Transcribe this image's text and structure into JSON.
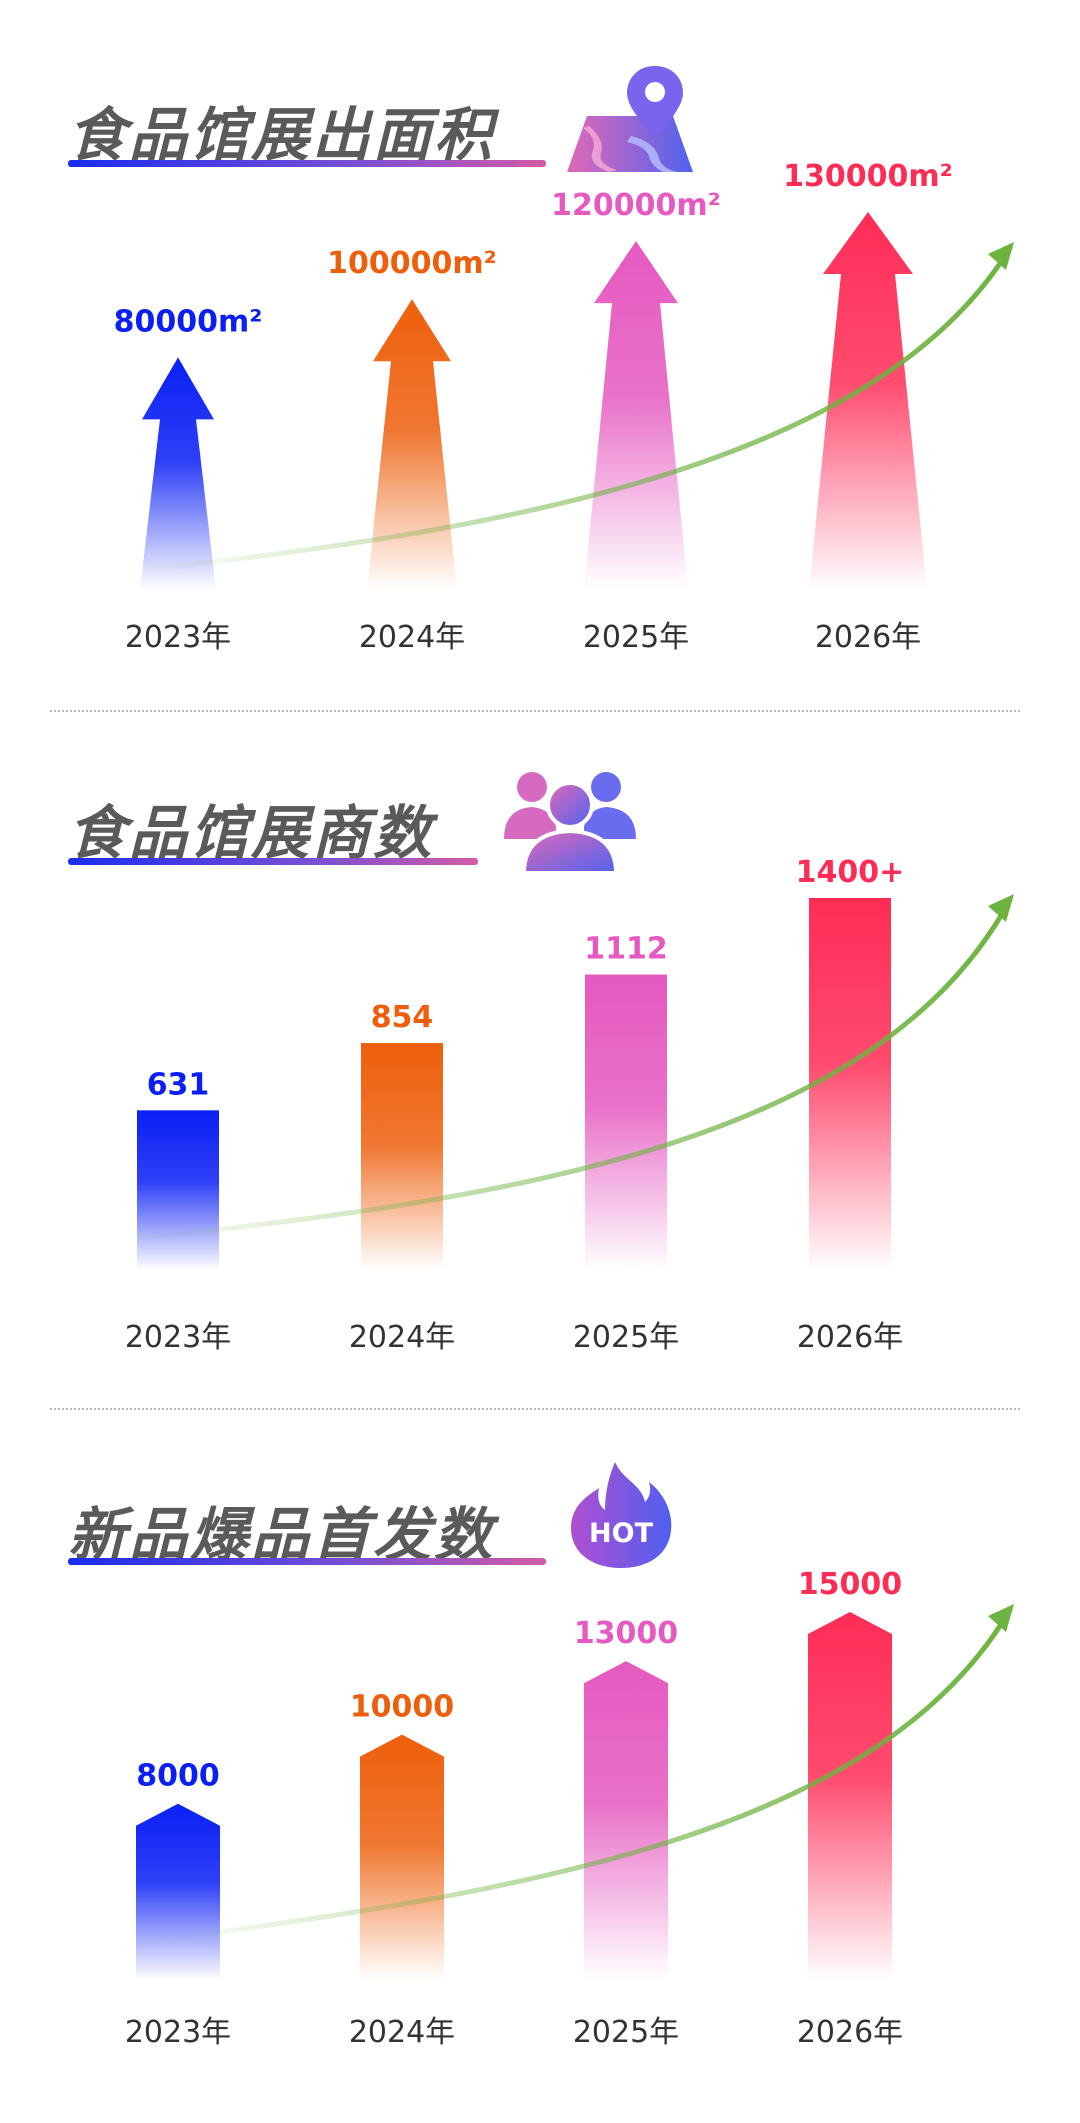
{
  "colors": {
    "blue": "#0a1ff5",
    "orange": "#ee5f0c",
    "pink": "#e559c0",
    "red": "#ff2c56",
    "green": "#6db33f",
    "title": "#5a5a5a",
    "axis_text": "#333333"
  },
  "sections": [
    {
      "title": "食品馆展出面积",
      "icon": "map-pin-icon"
    },
    {
      "title": "食品馆展商数",
      "icon": "users-group-icon"
    },
    {
      "title": "新品爆品首发数",
      "icon": "hot-flame-icon",
      "icon_text": "HOT"
    }
  ],
  "chart_data": [
    {
      "type": "bar",
      "mark": "arrow",
      "title": "食品馆展出面积",
      "categories": [
        "2023年",
        "2024年",
        "2025年",
        "2026年"
      ],
      "values": [
        80000,
        100000,
        120000,
        130000
      ],
      "labels": [
        "80000m²",
        "100000m²",
        "120000m²",
        "130000m²"
      ],
      "unit": "m²",
      "trend_arrow": true
    },
    {
      "type": "bar",
      "mark": "column",
      "title": "食品馆展商数",
      "categories": [
        "2023年",
        "2024年",
        "2025年",
        "2026年"
      ],
      "values": [
        631,
        854,
        1112,
        1400
      ],
      "labels": [
        "631",
        "854",
        "1112",
        "1400+"
      ],
      "trend_arrow": true
    },
    {
      "type": "bar",
      "mark": "pointed-column",
      "title": "新品爆品首发数",
      "categories": [
        "2023年",
        "2024年",
        "2025年",
        "2026年"
      ],
      "values": [
        8000,
        10000,
        13000,
        15000
      ],
      "labels": [
        "8000",
        "10000",
        "13000",
        "15000"
      ],
      "trend_arrow": true
    }
  ]
}
